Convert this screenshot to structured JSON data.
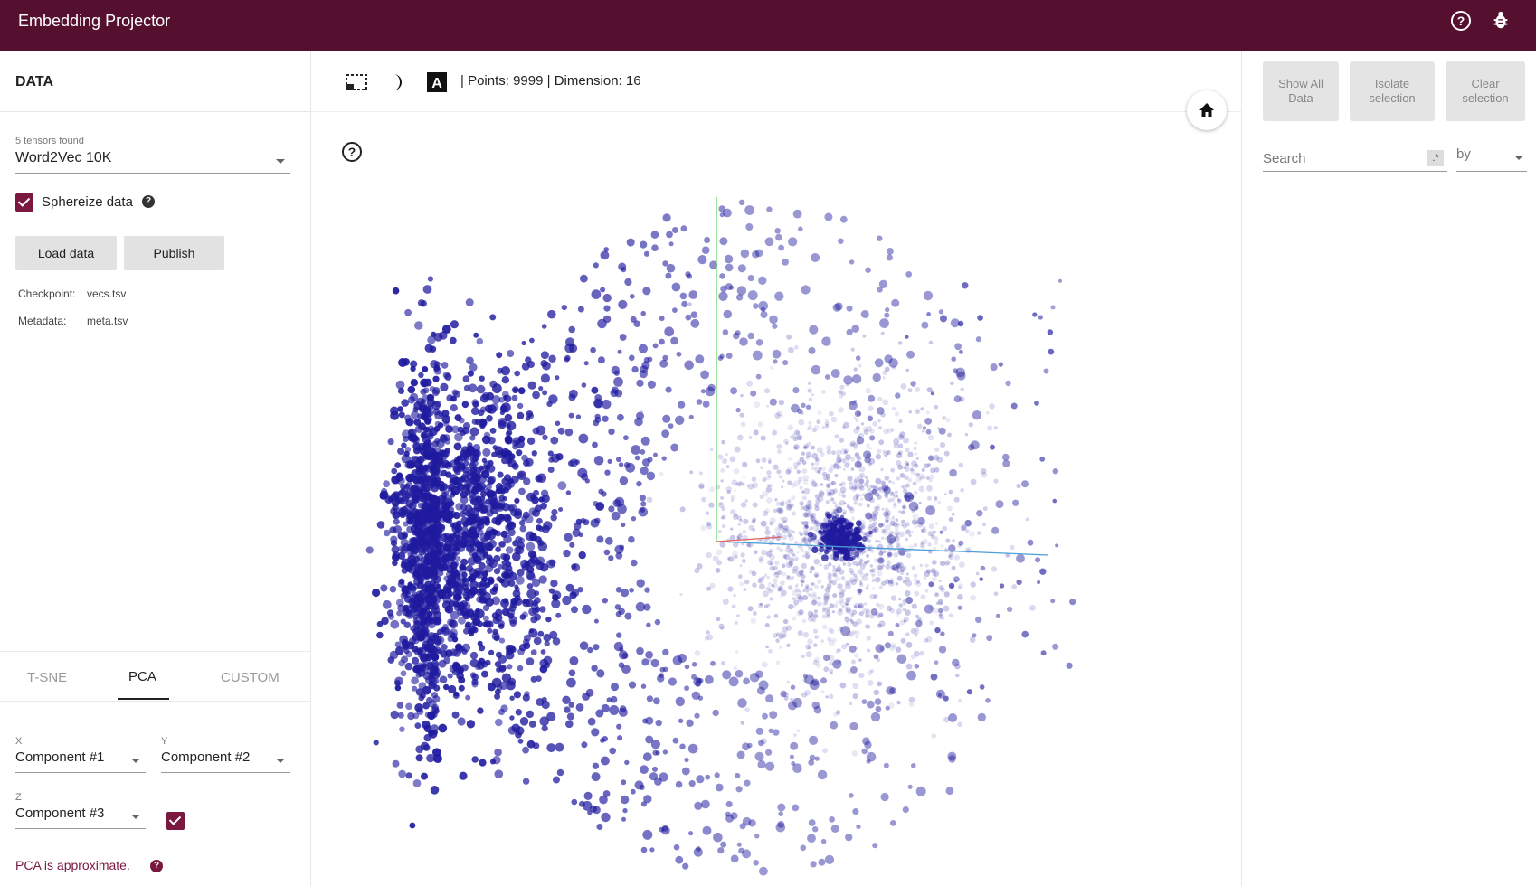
{
  "app": {
    "title": "Embedding Projector"
  },
  "left": {
    "section_title": "DATA",
    "tensors_found": "5 tensors found",
    "dataset": "Word2Vec 10K",
    "sphereize_label": "Sphereize data",
    "sphereize_checked": true,
    "load_button": "Load data",
    "publish_button": "Publish",
    "checkpoint_label": "Checkpoint:",
    "checkpoint_value": "vecs.tsv",
    "metadata_label": "Metadata:",
    "metadata_value": "meta.tsv",
    "tabs": [
      "T-SNE",
      "PCA",
      "CUSTOM"
    ],
    "active_tab": "PCA",
    "x_label": "X",
    "x_value": "Component #1",
    "y_label": "Y",
    "y_value": "Component #2",
    "z_label": "Z",
    "z_value": "Component #3",
    "z_checked": true,
    "pca_note": "PCA is approximate."
  },
  "center": {
    "stats": "| Points: 9999 | Dimension: 16"
  },
  "right": {
    "show_all": "Show All Data",
    "isolate": "Isolate selection",
    "clear": "Clear selection",
    "search_placeholder": "Search",
    "regex_symbol": ".*",
    "by_label": "by"
  },
  "colors": {
    "header": "#550f2f",
    "accent": "#7a1840",
    "points": "#1f1a9e"
  }
}
